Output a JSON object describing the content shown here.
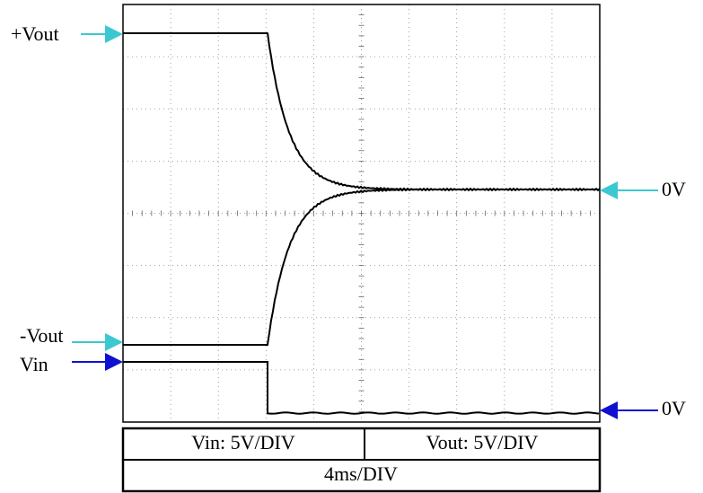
{
  "labels": {
    "plus_vout": "+Vout",
    "minus_vout": "-Vout",
    "vin": "Vin",
    "zero_vout": "0V",
    "zero_vin": "0V"
  },
  "table": {
    "rows": [
      [
        "Vin: 5V/DIV",
        "Vout: 5V/DIV"
      ],
      [
        "4ms/DIV"
      ]
    ]
  }
}
